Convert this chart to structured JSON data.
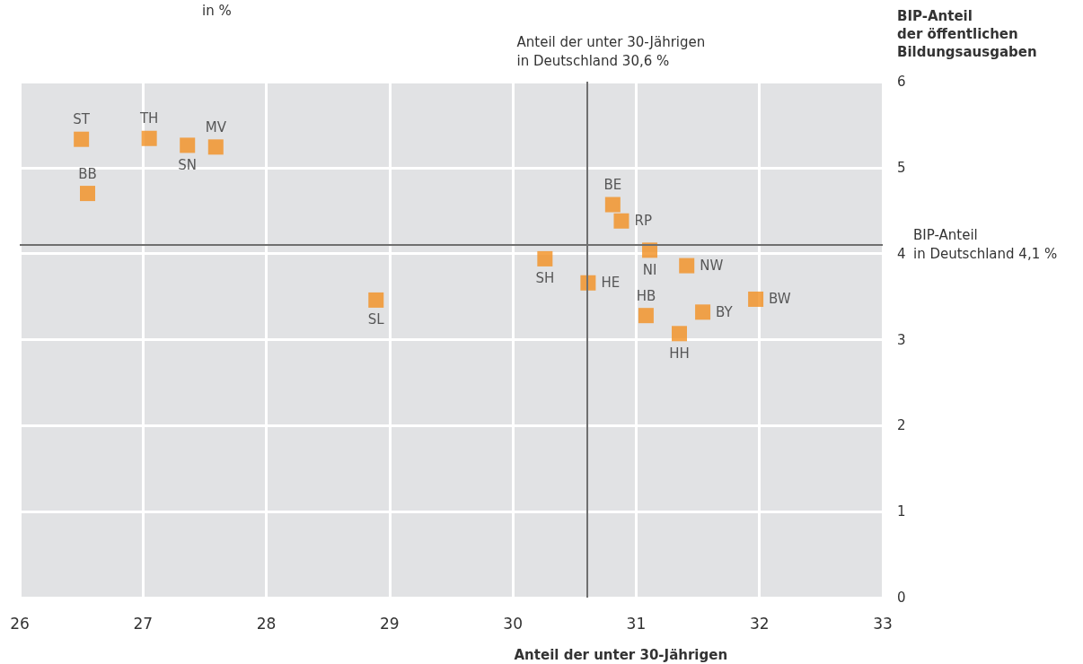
{
  "chart_data": {
    "type": "scatter",
    "xlabel": "Anteil der unter 30-Jährigen",
    "ylabel": "BIP-Anteil\nder öffentlichen\nBildungsausgaben",
    "annotations": [
      "in %"
    ],
    "x": [
      26.5,
      27.05,
      27.36,
      27.59,
      26.55,
      28.89,
      30.26,
      30.61,
      30.81,
      30.88,
      31.11,
      31.41,
      31.08,
      31.54,
      31.35,
      31.97
    ],
    "values": [
      5.33,
      5.34,
      5.26,
      5.24,
      4.7,
      3.46,
      3.94,
      3.66,
      4.57,
      4.38,
      4.04,
      3.86,
      3.28,
      3.32,
      3.07,
      3.47
    ],
    "value_labels": [
      "ST",
      "TH",
      "SN",
      "MV",
      "BB",
      "SL",
      "SH",
      "HE",
      "BE",
      "RP",
      "NI",
      "NW",
      "HB",
      "BY",
      "HH",
      "BW"
    ],
    "color": "#f39020",
    "marker": "square",
    "xlim": [
      26,
      33
    ],
    "xticks": [
      26,
      27,
      28,
      29,
      30,
      31,
      32,
      33
    ],
    "ylim": [
      0,
      6
    ],
    "yticks": [
      0,
      1,
      2,
      3,
      4,
      5,
      6
    ],
    "grid": true,
    "ref_lines": [
      {
        "axis": "x",
        "value": 30.6,
        "label": "Anteil der unter 30-Jährigen\nin Deutschland 30,6 %",
        "color": "#6f6f6f"
      },
      {
        "axis": "y",
        "value": 4.1,
        "label": "BIP-Anteil\nin Deutschland 4,1 %",
        "color": "#6f6f6f"
      }
    ]
  }
}
